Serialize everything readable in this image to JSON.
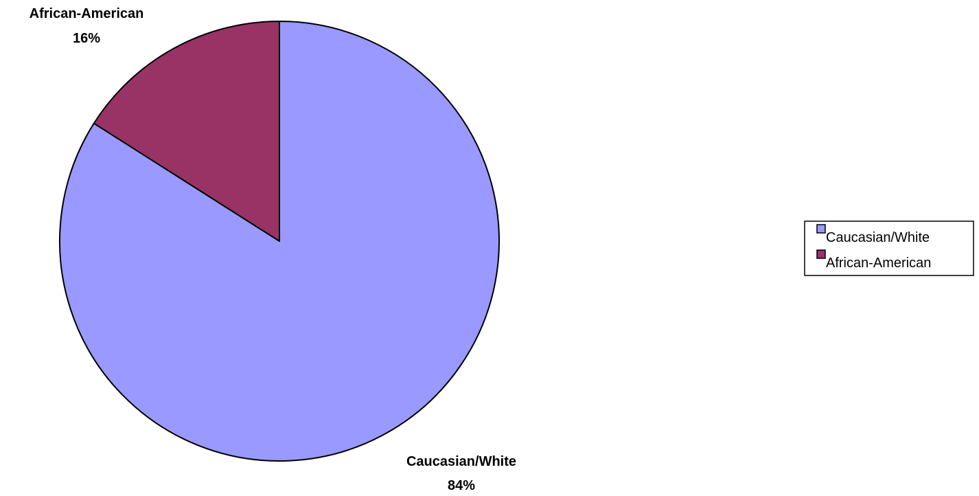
{
  "chart_data": {
    "type": "pie",
    "slices": [
      {
        "label": "Caucasian/White",
        "value": 84,
        "value_label": "84%",
        "color": "#9999FF"
      },
      {
        "label": "African-American",
        "value": 16,
        "value_label": "16%",
        "color": "#993366"
      }
    ],
    "start_angle": "12 o'clock",
    "direction": "clockwise",
    "legend": {
      "position": "right",
      "entries": [
        "Caucasian/White",
        "African-American"
      ]
    }
  }
}
